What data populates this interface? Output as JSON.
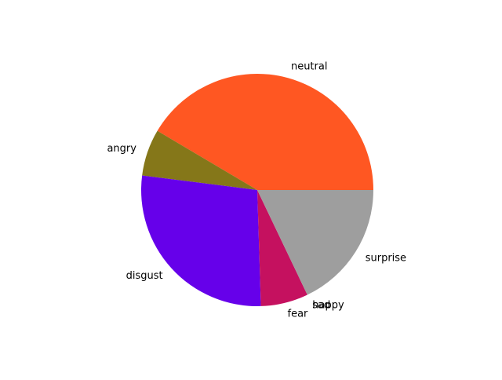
{
  "chart_data": {
    "type": "pie",
    "title": "",
    "start_angle_deg": 0,
    "direction": "counterclockwise",
    "slices": [
      {
        "label": "neutral",
        "value": 41.5,
        "color": "#ff5722"
      },
      {
        "label": "angry",
        "value": 6.5,
        "color": "#857719"
      },
      {
        "label": "disgust",
        "value": 27.5,
        "color": "#6600ea"
      },
      {
        "label": "fear",
        "value": 6.6,
        "color": "#c5115f"
      },
      {
        "label": "sad",
        "value": 0.0,
        "color": "#3d5afe"
      },
      {
        "label": "happy",
        "value": 0.0,
        "color": "#4caf50"
      },
      {
        "label": "surprise",
        "value": 17.9,
        "color": "#9e9e9e"
      }
    ]
  }
}
